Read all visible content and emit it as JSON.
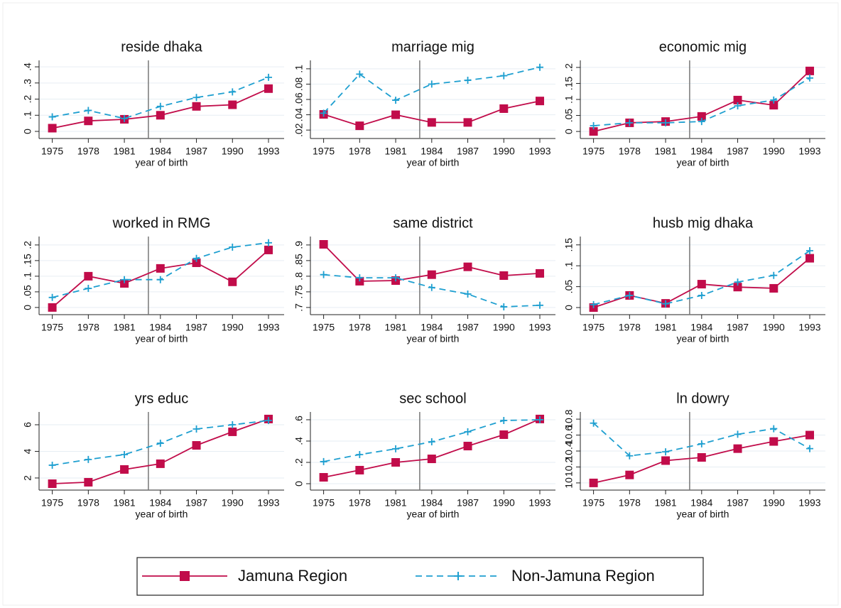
{
  "chart_data": [
    {
      "type": "line",
      "title": "reside dhaka",
      "xlabel": "year of birth",
      "x": [
        1975,
        1978,
        1981,
        1984,
        1987,
        1990,
        1993
      ],
      "xticks": [
        1975,
        1978,
        1981,
        1984,
        1987,
        1990,
        1993
      ],
      "xlim": [
        1973.9,
        1994.3
      ],
      "xline": 1983,
      "ylim": [
        -0.044,
        0.44
      ],
      "yticks": [
        0,
        {
          "value": 0.1,
          "label": ".1"
        },
        {
          "value": 0.2,
          "label": ".2"
        },
        {
          "value": 0.3,
          "label": ".3"
        },
        {
          "value": 0.4,
          "label": ".4"
        }
      ],
      "grid": true,
      "series": [
        {
          "name": "Jamuna Region",
          "color": "#c10c4a",
          "marker": "square",
          "dash": false,
          "values": [
            0.02,
            0.065,
            0.075,
            0.1,
            0.155,
            0.165,
            0.265
          ]
        },
        {
          "name": "Non-Jamuna Region",
          "color": "#1e9fd0",
          "marker": "plus",
          "dash": true,
          "values": [
            0.09,
            0.13,
            0.08,
            0.155,
            0.21,
            0.245,
            0.335
          ]
        }
      ]
    },
    {
      "type": "line",
      "title": "marriage mig",
      "xlabel": "year of birth",
      "x": [
        1975,
        1978,
        1981,
        1984,
        1987,
        1990,
        1993
      ],
      "xticks": [
        1975,
        1978,
        1981,
        1984,
        1987,
        1990,
        1993
      ],
      "xlim": [
        1973.9,
        1994.3
      ],
      "xline": 1983,
      "ylim": [
        0.009,
        0.111
      ],
      "yticks": [
        {
          "value": 0.02,
          "label": ".02"
        },
        {
          "value": 0.04,
          "label": ".04"
        },
        {
          "value": 0.06,
          "label": ".06"
        },
        {
          "value": 0.08,
          "label": ".08"
        },
        {
          "value": 0.1,
          "label": ".1"
        }
      ],
      "grid": true,
      "series": [
        {
          "name": "Jamuna Region",
          "color": "#c10c4a",
          "marker": "square",
          "dash": false,
          "values": [
            0.0405,
            0.0256,
            0.04,
            0.03,
            0.03,
            0.048,
            0.058
          ]
        },
        {
          "name": "Non-Jamuna Region",
          "color": "#1e9fd0",
          "marker": "plus",
          "dash": true,
          "values": [
            0.042,
            0.093,
            0.059,
            0.08,
            0.085,
            0.091,
            0.102
          ]
        }
      ]
    },
    {
      "type": "line",
      "title": "economic mig",
      "xlabel": "year of birth",
      "x": [
        1975,
        1978,
        1981,
        1984,
        1987,
        1990,
        1993
      ],
      "xticks": [
        1975,
        1978,
        1981,
        1984,
        1987,
        1990,
        1993
      ],
      "xlim": [
        1973.9,
        1994.3
      ],
      "xline": 1983,
      "ylim": [
        -0.022,
        0.222
      ],
      "yticks": [
        0,
        {
          "value": 0.05,
          "label": ".05"
        },
        {
          "value": 0.1,
          "label": ".1"
        },
        {
          "value": 0.15,
          "label": ".15"
        },
        {
          "value": 0.2,
          "label": ".2"
        }
      ],
      "grid": true,
      "series": [
        {
          "name": "Jamuna Region",
          "color": "#c10c4a",
          "marker": "square",
          "dash": false,
          "values": [
            0,
            0.027,
            0.031,
            0.047,
            0.098,
            0.082,
            0.189
          ]
        },
        {
          "name": "Non-Jamuna Region",
          "color": "#1e9fd0",
          "marker": "plus",
          "dash": true,
          "values": [
            0.018,
            0.027,
            0.027,
            0.031,
            0.08,
            0.098,
            0.167
          ]
        }
      ]
    },
    {
      "type": "line",
      "title": "worked in RMG",
      "xlabel": "year of birth",
      "x": [
        1975,
        1978,
        1981,
        1984,
        1987,
        1990,
        1993
      ],
      "xticks": [
        1975,
        1978,
        1981,
        1984,
        1987,
        1990,
        1993
      ],
      "xlim": [
        1973.9,
        1994.3
      ],
      "xline": 1983,
      "ylim": [
        -0.023,
        0.227
      ],
      "yticks": [
        0,
        {
          "value": 0.05,
          "label": ".05"
        },
        {
          "value": 0.1,
          "label": ".1"
        },
        {
          "value": 0.15,
          "label": ".15"
        },
        {
          "value": 0.2,
          "label": ".2"
        }
      ],
      "grid": true,
      "series": [
        {
          "name": "Jamuna Region",
          "color": "#c10c4a",
          "marker": "square",
          "dash": false,
          "values": [
            0,
            0.1,
            0.077,
            0.125,
            0.143,
            0.082,
            0.184
          ]
        },
        {
          "name": "Non-Jamuna Region",
          "color": "#1e9fd0",
          "marker": "plus",
          "dash": true,
          "values": [
            0.032,
            0.061,
            0.089,
            0.089,
            0.157,
            0.193,
            0.207
          ]
        }
      ]
    },
    {
      "type": "line",
      "title": "same district",
      "xlabel": "year of birth",
      "x": [
        1975,
        1978,
        1981,
        1984,
        1987,
        1990,
        1993
      ],
      "xticks": [
        1975,
        1978,
        1981,
        1984,
        1987,
        1990,
        1993
      ],
      "xlim": [
        1973.9,
        1994.3
      ],
      "xline": 1983,
      "ylim": [
        0.677,
        0.927
      ],
      "yticks": [
        {
          "value": 0.7,
          "label": ".7"
        },
        {
          "value": 0.75,
          "label": ".75"
        },
        {
          "value": 0.8,
          "label": ".8"
        },
        {
          "value": 0.85,
          "label": ".85"
        },
        {
          "value": 0.9,
          "label": ".9"
        }
      ],
      "grid": true,
      "series": [
        {
          "name": "Jamuna Region",
          "color": "#c10c4a",
          "marker": "square",
          "dash": false,
          "values": [
            0.902,
            0.784,
            0.786,
            0.805,
            0.83,
            0.802,
            0.809
          ]
        },
        {
          "name": "Non-Jamuna Region",
          "color": "#1e9fd0",
          "marker": "plus",
          "dash": true,
          "values": [
            0.805,
            0.795,
            0.795,
            0.764,
            0.743,
            0.702,
            0.707
          ]
        }
      ]
    },
    {
      "type": "line",
      "title": "husb mig dhaka",
      "xlabel": "year of birth",
      "x": [
        1975,
        1978,
        1981,
        1984,
        1987,
        1990,
        1993
      ],
      "xticks": [
        1975,
        1978,
        1981,
        1984,
        1987,
        1990,
        1993
      ],
      "xlim": [
        1973.9,
        1994.3
      ],
      "xline": 1983,
      "ylim": [
        -0.017,
        0.17
      ],
      "yticks": [
        0,
        {
          "value": 0.05,
          "label": ".05"
        },
        {
          "value": 0.1,
          "label": ".1"
        },
        {
          "value": 0.15,
          "label": ".15"
        }
      ],
      "grid": true,
      "series": [
        {
          "name": "Jamuna Region",
          "color": "#c10c4a",
          "marker": "square",
          "dash": false,
          "values": [
            0,
            0.029,
            0.01,
            0.056,
            0.049,
            0.046,
            0.118
          ]
        },
        {
          "name": "Non-Jamuna Region",
          "color": "#1e9fd0",
          "marker": "plus",
          "dash": true,
          "values": [
            0.007,
            0.029,
            0.009,
            0.029,
            0.061,
            0.077,
            0.136
          ]
        }
      ]
    },
    {
      "type": "line",
      "title": "yrs educ",
      "xlabel": "year of birth",
      "x": [
        1975,
        1978,
        1981,
        1984,
        1987,
        1990,
        1993
      ],
      "xticks": [
        1975,
        1978,
        1981,
        1984,
        1987,
        1990,
        1993
      ],
      "xlim": [
        1973.9,
        1994.3
      ],
      "xline": 1983,
      "ylim": [
        1.09,
        6.96
      ],
      "yticks": [
        2,
        4,
        6
      ],
      "grid": true,
      "series": [
        {
          "name": "Jamuna Region",
          "color": "#c10c4a",
          "marker": "square",
          "dash": false,
          "values": [
            1.57,
            1.68,
            2.64,
            3.07,
            4.45,
            5.47,
            6.43
          ]
        },
        {
          "name": "Non-Jamuna Region",
          "color": "#1e9fd0",
          "marker": "plus",
          "dash": true,
          "values": [
            2.96,
            3.39,
            3.76,
            4.61,
            5.68,
            6.0,
            6.32
          ]
        }
      ]
    },
    {
      "type": "line",
      "title": "sec school",
      "xlabel": "year of birth",
      "x": [
        1975,
        1978,
        1981,
        1984,
        1987,
        1990,
        1993
      ],
      "xticks": [
        1975,
        1978,
        1981,
        1984,
        1987,
        1990,
        1993
      ],
      "xlim": [
        1973.9,
        1994.3
      ],
      "xline": 1983,
      "ylim": [
        -0.06,
        0.673
      ],
      "yticks": [
        0,
        {
          "value": 0.2,
          "label": ".2"
        },
        {
          "value": 0.4,
          "label": ".4"
        },
        {
          "value": 0.6,
          "label": ".6"
        }
      ],
      "grid": true,
      "series": [
        {
          "name": "Jamuna Region",
          "color": "#c10c4a",
          "marker": "square",
          "dash": false,
          "values": [
            0.06,
            0.127,
            0.2,
            0.233,
            0.353,
            0.46,
            0.607
          ]
        },
        {
          "name": "Non-Jamuna Region",
          "color": "#1e9fd0",
          "marker": "plus",
          "dash": true,
          "values": [
            0.207,
            0.273,
            0.327,
            0.393,
            0.487,
            0.593,
            0.6
          ]
        }
      ]
    },
    {
      "type": "line",
      "title": "ln dowry",
      "xlabel": "year of birth",
      "x": [
        1975,
        1978,
        1981,
        1984,
        1987,
        1990,
        1993
      ],
      "xticks": [
        1975,
        1978,
        1981,
        1984,
        1987,
        1990,
        1993
      ],
      "xlim": [
        1973.9,
        1994.3
      ],
      "xline": 1983,
      "ylim": [
        9.91,
        10.89
      ],
      "yticks": [
        10,
        10.2,
        10.4,
        10.6,
        10.8
      ],
      "grid": true,
      "series": [
        {
          "name": "Jamuna Region",
          "color": "#c10c4a",
          "marker": "square",
          "dash": false,
          "values": [
            10.0,
            10.1,
            10.28,
            10.32,
            10.43,
            10.52,
            10.6
          ]
        },
        {
          "name": "Non-Jamuna Region",
          "color": "#1e9fd0",
          "marker": "plus",
          "dash": true,
          "values": [
            10.75,
            10.34,
            10.39,
            10.49,
            10.61,
            10.68,
            10.43
          ]
        }
      ]
    }
  ]
}
